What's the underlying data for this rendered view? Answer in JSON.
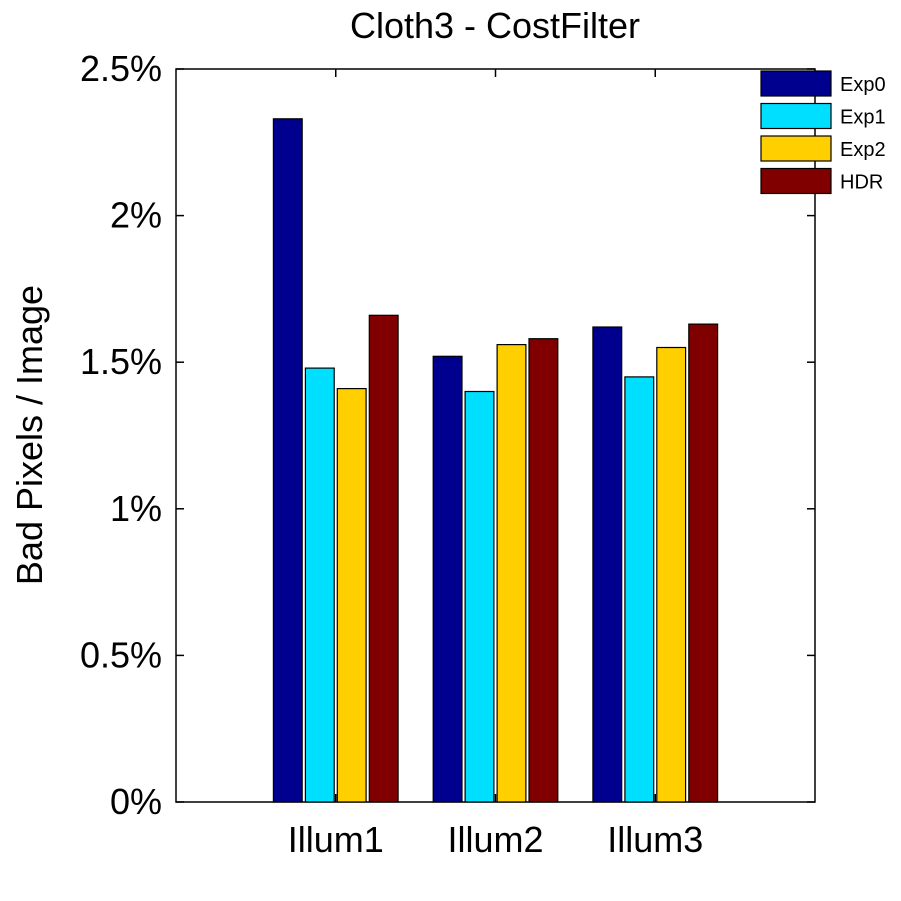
{
  "chart_data": {
    "type": "bar",
    "title": "Cloth3 - CostFilter",
    "xlabel": "",
    "ylabel": "Bad Pixels / Image",
    "categories": [
      "Illum1",
      "Illum2",
      "Illum3"
    ],
    "series": [
      {
        "name": "Exp0",
        "color": "#00008F",
        "values": [
          2.33,
          1.52,
          1.62
        ]
      },
      {
        "name": "Exp1",
        "color": "#00DFFF",
        "values": [
          1.48,
          1.4,
          1.45
        ]
      },
      {
        "name": "Exp2",
        "color": "#FFCF00",
        "values": [
          1.41,
          1.56,
          1.55
        ]
      },
      {
        "name": "HDR",
        "color": "#800000",
        "values": [
          1.66,
          1.58,
          1.63
        ]
      }
    ],
    "ylim": [
      0,
      2.5
    ],
    "xlim": [
      0,
      4
    ],
    "yticks": [
      0,
      0.5,
      1,
      1.5,
      2,
      2.5
    ],
    "ytick_labels": [
      "0%",
      "0.5%",
      "1%",
      "1.5%",
      "2%",
      "2.5%"
    ],
    "grid": false,
    "legend_position": "top-right"
  }
}
